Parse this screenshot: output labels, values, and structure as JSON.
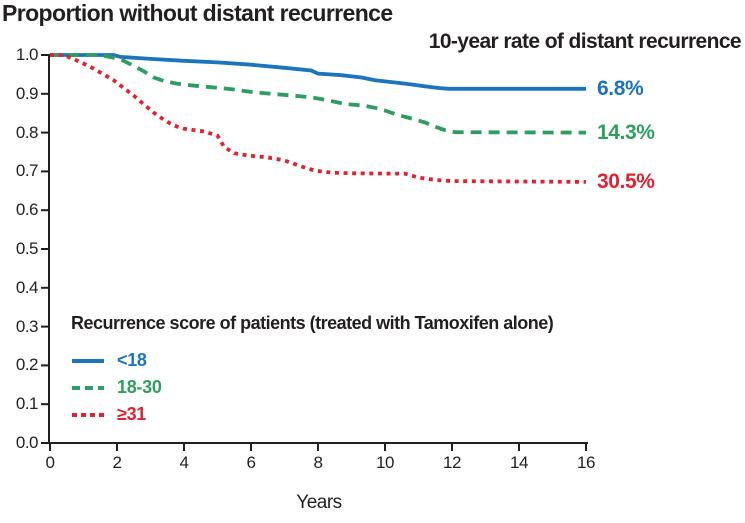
{
  "page": {
    "title": "Proportion without distant recurrence",
    "annotation_heading": "10-year rate of distant recurrence"
  },
  "legend": {
    "heading": "Recurrence score of patients (treated with Tamoxifen alone)",
    "items": [
      {
        "label": "<18",
        "color": "#1c75bc",
        "style": "solid"
      },
      {
        "label": "18-30",
        "color": "#2d9e5f",
        "style": "dashed"
      },
      {
        "label": "≥31",
        "color": "#e02330",
        "style": "dotted"
      }
    ]
  },
  "colors": {
    "text": "#231f20",
    "axis": "#231f20",
    "background": "#ffffff",
    "blue": "#1c75bc",
    "green": "#2d9e5f",
    "red": "#e02330"
  },
  "chart_data": {
    "type": "line",
    "subtype": "kaplan-meier",
    "title": "Proportion without distant recurrence",
    "xlabel": "Years",
    "ylabel": "Proportion without distant recurrence",
    "annotation": "10-year rate of distant recurrence",
    "xlim": [
      0,
      16
    ],
    "ylim": [
      0.0,
      1.0
    ],
    "xticks": [
      0,
      2,
      4,
      6,
      8,
      10,
      12,
      14,
      16
    ],
    "yticks": [
      0.0,
      0.1,
      0.2,
      0.3,
      0.4,
      0.5,
      0.6,
      0.7,
      0.8,
      0.9,
      1.0
    ],
    "grid": false,
    "legend_position": "inside-lower-left",
    "series": [
      {
        "name": "<18",
        "color": "#1c75bc",
        "style": "solid",
        "end_label": "6.8%",
        "ten_year_recurrence_rate_pct": 6.8,
        "points": [
          [
            0,
            1.0
          ],
          [
            1.9,
            1.0
          ],
          [
            2.1,
            0.995
          ],
          [
            3,
            0.99
          ],
          [
            4,
            0.985
          ],
          [
            5,
            0.981
          ],
          [
            6,
            0.975
          ],
          [
            7,
            0.967
          ],
          [
            7.8,
            0.96
          ],
          [
            8,
            0.952
          ],
          [
            8.7,
            0.948
          ],
          [
            9.3,
            0.942
          ],
          [
            9.7,
            0.935
          ],
          [
            10,
            0.932
          ],
          [
            10.4,
            0.928
          ],
          [
            10.8,
            0.924
          ],
          [
            11.2,
            0.919
          ],
          [
            11.6,
            0.915
          ],
          [
            11.9,
            0.913
          ],
          [
            16,
            0.913
          ]
        ]
      },
      {
        "name": "18-30",
        "color": "#2d9e5f",
        "style": "dashed",
        "end_label": "14.3%",
        "ten_year_recurrence_rate_pct": 14.3,
        "points": [
          [
            0,
            1.0
          ],
          [
            1.5,
            1.0
          ],
          [
            1.9,
            0.993
          ],
          [
            2.2,
            0.985
          ],
          [
            2.5,
            0.972
          ],
          [
            2.8,
            0.958
          ],
          [
            3.1,
            0.942
          ],
          [
            3.4,
            0.933
          ],
          [
            3.8,
            0.926
          ],
          [
            4.2,
            0.922
          ],
          [
            4.8,
            0.917
          ],
          [
            5.4,
            0.912
          ],
          [
            6,
            0.905
          ],
          [
            6.6,
            0.9
          ],
          [
            7.2,
            0.896
          ],
          [
            7.8,
            0.891
          ],
          [
            8.3,
            0.883
          ],
          [
            8.8,
            0.874
          ],
          [
            9.4,
            0.869
          ],
          [
            9.8,
            0.862
          ],
          [
            10,
            0.857
          ],
          [
            10.4,
            0.845
          ],
          [
            10.8,
            0.836
          ],
          [
            11.2,
            0.826
          ],
          [
            11.5,
            0.815
          ],
          [
            11.8,
            0.806
          ],
          [
            12.1,
            0.801
          ],
          [
            16,
            0.8
          ]
        ]
      },
      {
        "name": "≥31",
        "color": "#e02330",
        "style": "dotted",
        "end_label": "30.5%",
        "ten_year_recurrence_rate_pct": 30.5,
        "points": [
          [
            0,
            1.0
          ],
          [
            0.4,
            1.0
          ],
          [
            0.7,
            0.99
          ],
          [
            1.0,
            0.978
          ],
          [
            1.3,
            0.965
          ],
          [
            1.6,
            0.95
          ],
          [
            1.9,
            0.935
          ],
          [
            2.2,
            0.915
          ],
          [
            2.5,
            0.895
          ],
          [
            2.8,
            0.873
          ],
          [
            3.1,
            0.851
          ],
          [
            3.4,
            0.833
          ],
          [
            3.7,
            0.818
          ],
          [
            4.0,
            0.81
          ],
          [
            4.6,
            0.803
          ],
          [
            5.0,
            0.792
          ],
          [
            5.2,
            0.763
          ],
          [
            5.5,
            0.747
          ],
          [
            5.9,
            0.741
          ],
          [
            6.5,
            0.736
          ],
          [
            7.0,
            0.728
          ],
          [
            7.5,
            0.713
          ],
          [
            7.9,
            0.702
          ],
          [
            8.4,
            0.697
          ],
          [
            9.0,
            0.695
          ],
          [
            10.6,
            0.694
          ],
          [
            11.0,
            0.684
          ],
          [
            11.5,
            0.678
          ],
          [
            12.0,
            0.675
          ],
          [
            16,
            0.673
          ]
        ]
      }
    ]
  }
}
